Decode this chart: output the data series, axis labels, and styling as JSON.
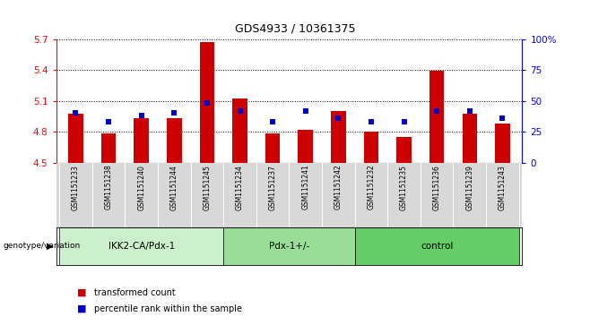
{
  "title": "GDS4933 / 10361375",
  "samples": [
    "GSM1151233",
    "GSM1151238",
    "GSM1151240",
    "GSM1151244",
    "GSM1151245",
    "GSM1151234",
    "GSM1151237",
    "GSM1151241",
    "GSM1151242",
    "GSM1151232",
    "GSM1151235",
    "GSM1151236",
    "GSM1151239",
    "GSM1151243"
  ],
  "red_values": [
    4.97,
    4.78,
    4.93,
    4.93,
    5.67,
    5.12,
    4.78,
    4.82,
    5.0,
    4.8,
    4.75,
    5.39,
    4.97,
    4.88
  ],
  "blue_values_pct": [
    40,
    33,
    38,
    40,
    48,
    42,
    33,
    42,
    36,
    33,
    33,
    42,
    42,
    36
  ],
  "ylim_left": [
    4.5,
    5.7
  ],
  "ylim_right": [
    0,
    100
  ],
  "yticks_left": [
    4.5,
    4.8,
    5.1,
    5.4,
    5.7
  ],
  "ytick_labels_left": [
    "4.5",
    "4.8",
    "5.1",
    "5.4",
    "5.7"
  ],
  "yticks_right": [
    0,
    25,
    50,
    75,
    100
  ],
  "ytick_labels_right": [
    "0",
    "25",
    "50",
    "75",
    "100%"
  ],
  "groups": [
    {
      "label": "IKK2-CA/Pdx-1",
      "start": 0,
      "end": 5
    },
    {
      "label": "Pdx-1+/-",
      "start": 5,
      "end": 9
    },
    {
      "label": "control",
      "start": 9,
      "end": 14
    }
  ],
  "group_colors": [
    "#ccf0cc",
    "#99dd99",
    "#66cc66"
  ],
  "bar_color": "#cc0000",
  "marker_color": "#0000cc",
  "bar_width": 0.45,
  "base_value": 4.5,
  "tick_bg": "#d8d8d8",
  "group_label": "genotype/variation",
  "legend_red": "transformed count",
  "legend_blue": "percentile rank within the sample"
}
